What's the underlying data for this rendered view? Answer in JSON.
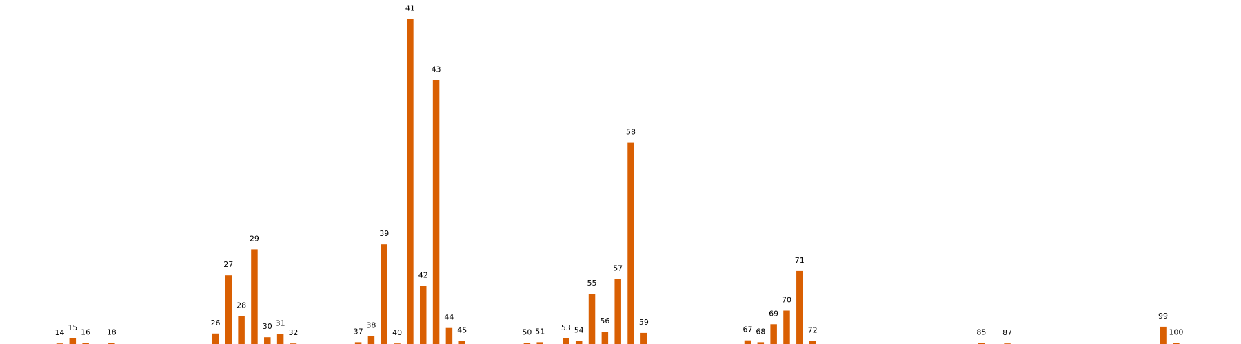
{
  "chart_data": {
    "type": "bar",
    "title": "",
    "xlabel": "",
    "ylabel": "",
    "axes_visible": false,
    "grid": false,
    "bar_color": "#d95f02",
    "categories": [
      14,
      15,
      16,
      18,
      26,
      27,
      28,
      29,
      30,
      31,
      32,
      37,
      38,
      39,
      40,
      41,
      42,
      43,
      44,
      45,
      50,
      51,
      53,
      54,
      55,
      56,
      57,
      58,
      59,
      67,
      68,
      69,
      70,
      71,
      72,
      85,
      87,
      99,
      100
    ],
    "labels": [
      "14",
      "15",
      "16",
      "18",
      "26",
      "27",
      "28",
      "29",
      "30",
      "31",
      "32",
      "37",
      "38",
      "39",
      "40",
      "41",
      "42",
      "43",
      "44",
      "45",
      "50",
      "51",
      "53",
      "54",
      "55",
      "56",
      "57",
      "58",
      "59",
      "67",
      "68",
      "69",
      "70",
      "71",
      "72",
      "85",
      "87",
      "99",
      "100"
    ],
    "values": [
      0.2,
      1.0,
      0.3,
      0.3,
      1.8,
      11.2,
      4.6,
      15.4,
      1.2,
      1.7,
      0.2,
      0.4,
      1.4,
      16.2,
      0.2,
      52.6,
      9.5,
      42.7,
      2.7,
      0.6,
      0.3,
      0.4,
      1.0,
      0.6,
      8.2,
      2.1,
      10.6,
      32.6,
      1.9,
      0.7,
      0.4,
      3.3,
      5.5,
      11.9,
      0.6,
      0.3,
      0.2,
      2.9,
      0.3
    ],
    "ylim": [
      0,
      53
    ]
  }
}
